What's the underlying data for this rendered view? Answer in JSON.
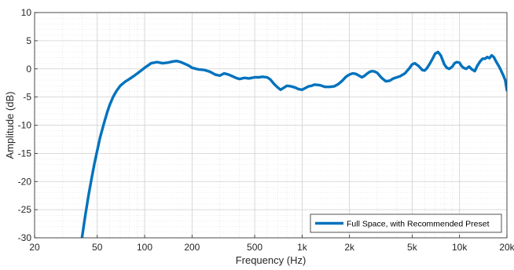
{
  "chart_data": {
    "type": "line",
    "title": "",
    "xlabel": "Frequency (Hz)",
    "ylabel": "Amplitude (dB)",
    "xscale": "log",
    "xlim": [
      20,
      20000
    ],
    "ylim": [
      -30,
      10
    ],
    "xticks": [
      20,
      50,
      100,
      200,
      500,
      1000,
      2000,
      5000,
      10000,
      20000
    ],
    "xtick_labels": [
      "20",
      "50",
      "100",
      "200",
      "500",
      "1k",
      "2k",
      "5k",
      "10k",
      "20k"
    ],
    "yticks": [
      10,
      5,
      0,
      -5,
      -10,
      -15,
      -20,
      -25,
      -30
    ],
    "ytick_labels": [
      "10",
      "5",
      "0",
      "-5",
      "-10",
      "-15",
      "-20",
      "-25",
      "-30"
    ],
    "grid": true,
    "minor_grid": true,
    "legend_position": "bottom-right",
    "series": [
      {
        "name": "Full Space, with Recommended Preset",
        "color": "#0072BD",
        "x": [
          40,
          42,
          44,
          46,
          48,
          50,
          52,
          55,
          58,
          60,
          63,
          66,
          70,
          75,
          80,
          85,
          90,
          95,
          100,
          105,
          110,
          120,
          130,
          140,
          150,
          160,
          170,
          180,
          190,
          200,
          220,
          240,
          260,
          280,
          300,
          320,
          340,
          360,
          380,
          400,
          430,
          460,
          500,
          530,
          560,
          600,
          630,
          660,
          700,
          730,
          760,
          800,
          850,
          900,
          950,
          1000,
          1050,
          1100,
          1150,
          1200,
          1300,
          1400,
          1500,
          1600,
          1700,
          1800,
          1900,
          2000,
          2100,
          2200,
          2300,
          2400,
          2500,
          2600,
          2700,
          2800,
          2900,
          3000,
          3200,
          3400,
          3600,
          3800,
          4000,
          4200,
          4500,
          4800,
          5000,
          5200,
          5500,
          5800,
          6000,
          6200,
          6500,
          6800,
          7000,
          7300,
          7600,
          7800,
          8000,
          8300,
          8600,
          9000,
          9300,
          9600,
          10000,
          10300,
          10600,
          11000,
          11500,
          12000,
          12500,
          13000,
          13500,
          14000,
          14500,
          15000,
          15500,
          16000,
          16500,
          17000,
          17500,
          18000,
          18500,
          19000,
          19500,
          20000
        ],
        "y": [
          -30,
          -26,
          -22.5,
          -19.5,
          -16.8,
          -14.5,
          -12.3,
          -9.8,
          -7.6,
          -6.4,
          -5,
          -4,
          -3,
          -2.3,
          -1.8,
          -1.3,
          -0.8,
          -0.3,
          0.2,
          0.6,
          1,
          1.2,
          1,
          1.1,
          1.3,
          1.4,
          1.2,
          0.9,
          0.6,
          0.2,
          -0.1,
          -0.2,
          -0.5,
          -1,
          -1.2,
          -0.8,
          -1,
          -1.3,
          -1.6,
          -1.8,
          -1.6,
          -1.7,
          -1.5,
          -1.5,
          -1.4,
          -1.5,
          -1.9,
          -2.6,
          -3.3,
          -3.7,
          -3.4,
          -3,
          -3.1,
          -3.3,
          -3.6,
          -3.7,
          -3.4,
          -3.1,
          -3,
          -2.8,
          -2.9,
          -3.2,
          -3.2,
          -3.1,
          -2.7,
          -2.1,
          -1.4,
          -1,
          -0.8,
          -0.9,
          -1.2,
          -1.5,
          -1.2,
          -0.8,
          -0.5,
          -0.4,
          -0.5,
          -0.7,
          -1.6,
          -2.2,
          -2.1,
          -1.7,
          -1.5,
          -1.3,
          -0.8,
          0.1,
          0.8,
          1,
          0.5,
          -0.2,
          -0.3,
          0.1,
          1,
          2,
          2.7,
          3,
          2.4,
          1.6,
          0.8,
          0.2,
          0,
          0.4,
          1,
          1.2,
          1.1,
          0.5,
          0.2,
          0,
          0.4,
          -0.1,
          -0.4,
          0.6,
          1.3,
          1.8,
          1.8,
          2.1,
          1.9,
          2.4,
          2.1,
          1.4,
          0.8,
          0.2,
          -0.5,
          -1.2,
          -2,
          -3.8
        ]
      }
    ]
  }
}
